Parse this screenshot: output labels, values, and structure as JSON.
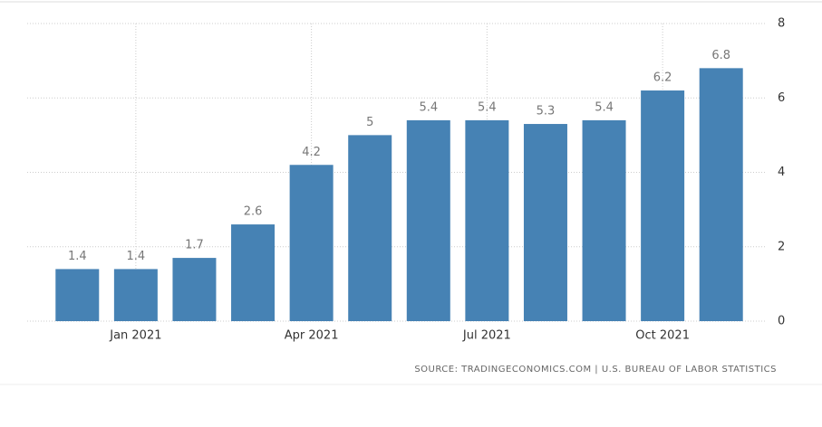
{
  "chart_data": {
    "type": "bar",
    "categories": [
      null,
      "Jan 2021",
      null,
      null,
      "Apr 2021",
      null,
      null,
      "Jul 2021",
      null,
      null,
      "Oct 2021",
      null
    ],
    "values": [
      1.4,
      1.4,
      1.7,
      2.6,
      4.2,
      5,
      5.4,
      5.4,
      5.3,
      5.4,
      6.2,
      6.8
    ],
    "color": "#4682b4",
    "ylim": [
      0,
      8
    ],
    "yticks": [
      0,
      2,
      4,
      6,
      8
    ],
    "grid": true,
    "source": "SOURCE: TRADINGECONOMICS.COM | U.S. BUREAU OF LABOR STATISTICS"
  }
}
